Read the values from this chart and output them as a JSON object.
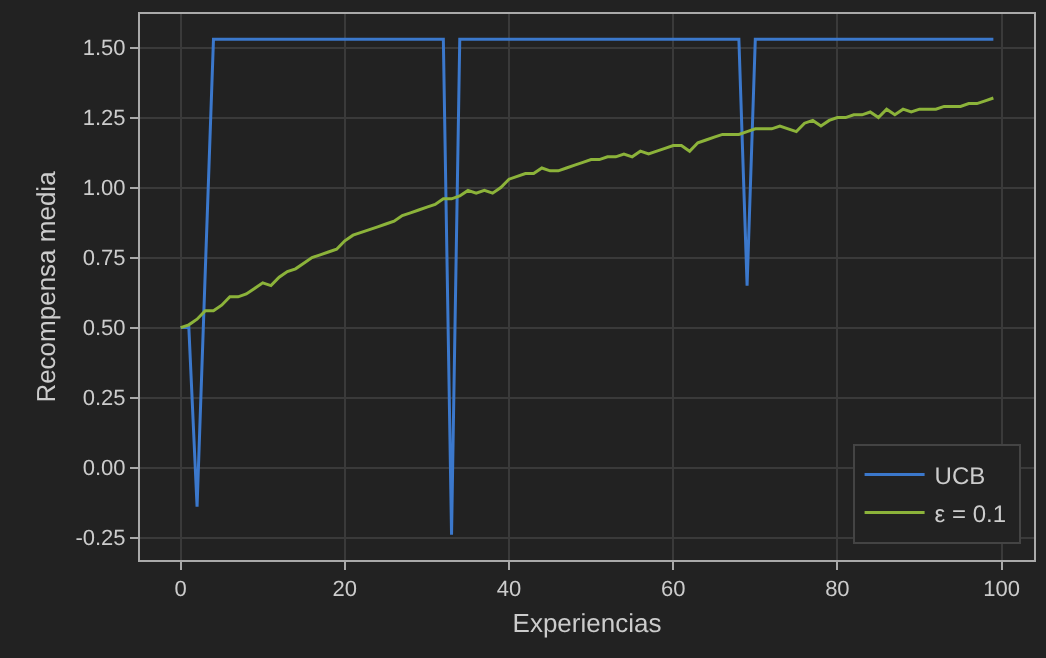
{
  "chart_data": {
    "type": "line",
    "xlabel": "Experiencias",
    "ylabel": "Recompensa media",
    "x": [
      0,
      1,
      2,
      3,
      4,
      5,
      6,
      7,
      8,
      9,
      10,
      11,
      12,
      13,
      14,
      15,
      16,
      17,
      18,
      19,
      20,
      21,
      22,
      23,
      24,
      25,
      26,
      27,
      28,
      29,
      30,
      31,
      32,
      33,
      34,
      35,
      36,
      37,
      38,
      39,
      40,
      41,
      42,
      43,
      44,
      45,
      46,
      47,
      48,
      49,
      50,
      51,
      52,
      53,
      54,
      55,
      56,
      57,
      58,
      59,
      60,
      61,
      62,
      63,
      64,
      65,
      66,
      67,
      68,
      69,
      70,
      71,
      72,
      73,
      74,
      75,
      76,
      77,
      78,
      79,
      80,
      81,
      82,
      83,
      84,
      85,
      86,
      87,
      88,
      89,
      90,
      91,
      92,
      93,
      94,
      95,
      96,
      97,
      98,
      99
    ],
    "series": [
      {
        "name": "UCB",
        "color": "#3b78cc",
        "values": [
          0.5,
          0.5,
          -0.14,
          0.7,
          1.53,
          1.53,
          1.53,
          1.53,
          1.53,
          1.53,
          1.53,
          1.53,
          1.53,
          1.53,
          1.53,
          1.53,
          1.53,
          1.53,
          1.53,
          1.53,
          1.53,
          1.53,
          1.53,
          1.53,
          1.53,
          1.53,
          1.53,
          1.53,
          1.53,
          1.53,
          1.53,
          1.53,
          1.53,
          -0.24,
          1.53,
          1.53,
          1.53,
          1.53,
          1.53,
          1.53,
          1.53,
          1.53,
          1.53,
          1.53,
          1.53,
          1.53,
          1.53,
          1.53,
          1.53,
          1.53,
          1.53,
          1.53,
          1.53,
          1.53,
          1.53,
          1.53,
          1.53,
          1.53,
          1.53,
          1.53,
          1.53,
          1.53,
          1.53,
          1.53,
          1.53,
          1.53,
          1.53,
          1.53,
          1.53,
          0.65,
          1.53,
          1.53,
          1.53,
          1.53,
          1.53,
          1.53,
          1.53,
          1.53,
          1.53,
          1.53,
          1.53,
          1.53,
          1.53,
          1.53,
          1.53,
          1.53,
          1.53,
          1.53,
          1.53,
          1.53,
          1.53,
          1.53,
          1.53,
          1.53,
          1.53,
          1.53,
          1.53,
          1.53,
          1.53,
          1.53
        ]
      },
      {
        "name": "ε = 0.1",
        "color": "#8cb33a",
        "values": [
          0.5,
          0.51,
          0.53,
          0.56,
          0.56,
          0.58,
          0.61,
          0.61,
          0.62,
          0.64,
          0.66,
          0.65,
          0.68,
          0.7,
          0.71,
          0.73,
          0.75,
          0.76,
          0.77,
          0.78,
          0.81,
          0.83,
          0.84,
          0.85,
          0.86,
          0.87,
          0.88,
          0.9,
          0.91,
          0.92,
          0.93,
          0.94,
          0.96,
          0.96,
          0.97,
          0.99,
          0.98,
          0.99,
          0.98,
          1.0,
          1.03,
          1.04,
          1.05,
          1.05,
          1.07,
          1.06,
          1.06,
          1.07,
          1.08,
          1.09,
          1.1,
          1.1,
          1.11,
          1.11,
          1.12,
          1.11,
          1.13,
          1.12,
          1.13,
          1.14,
          1.15,
          1.15,
          1.13,
          1.16,
          1.17,
          1.18,
          1.19,
          1.19,
          1.19,
          1.2,
          1.21,
          1.21,
          1.21,
          1.22,
          1.21,
          1.2,
          1.23,
          1.24,
          1.22,
          1.24,
          1.25,
          1.25,
          1.26,
          1.26,
          1.27,
          1.25,
          1.28,
          1.26,
          1.28,
          1.27,
          1.28,
          1.28,
          1.28,
          1.29,
          1.29,
          1.29,
          1.3,
          1.3,
          1.31,
          1.32
        ]
      }
    ],
    "xlim": [
      -4.95,
      103.95
    ],
    "xticks": [
      0,
      20,
      40,
      60,
      80,
      100
    ],
    "ylim": [
      -0.33,
      1.62
    ],
    "yticks": [
      {
        "value": -0.25,
        "label": "-0.25"
      },
      {
        "value": 0,
        "label": "0.00"
      },
      {
        "value": 0.25,
        "label": "0.25"
      },
      {
        "value": 0.5,
        "label": "0.50"
      },
      {
        "value": 0.75,
        "label": "0.75"
      },
      {
        "value": 1,
        "label": "1.00"
      },
      {
        "value": 1.25,
        "label": "1.25"
      },
      {
        "value": 1.5,
        "label": "1.50"
      }
    ],
    "grid": true,
    "legend": "bottom right",
    "line_style": "solid"
  }
}
